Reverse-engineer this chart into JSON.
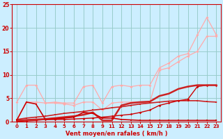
{
  "background_color": "#cceeff",
  "grid_color": "#99cccc",
  "xlabel": "Vent moyen/en rafales ( km/h )",
  "xlim": [
    -0.5,
    21.5
  ],
  "ylim": [
    0,
    25
  ],
  "xtick_positions": [
    0,
    1,
    2,
    3,
    4,
    5,
    6,
    7,
    8,
    9,
    10,
    11,
    12,
    13,
    14,
    15,
    16,
    17,
    18,
    19,
    20,
    21
  ],
  "xtick_labels": [
    "0",
    "1",
    "2",
    "3",
    "4",
    "5",
    "6",
    "7",
    "8",
    "9",
    "11",
    "12",
    "13",
    "14",
    "15",
    "17",
    "18",
    "19",
    "20",
    "21",
    "22",
    "23"
  ],
  "ytick_values": [
    0,
    5,
    10,
    15,
    20,
    25
  ],
  "lines": [
    {
      "x": [
        0,
        1,
        2,
        3,
        4,
        5,
        6,
        7,
        8,
        9,
        10,
        11,
        12,
        13,
        14,
        15,
        16,
        17,
        18,
        19,
        20,
        21
      ],
      "y": [
        4.2,
        7.8,
        7.8,
        4.0,
        4.2,
        4.0,
        4.0,
        7.5,
        7.8,
        4.0,
        7.5,
        7.8,
        7.5,
        7.8,
        7.8,
        11.5,
        12.5,
        14.0,
        14.5,
        18.5,
        22.2,
        18.5
      ],
      "color": "#ffaaaa",
      "linewidth": 0.9,
      "marker": "D",
      "markersize": 2.0,
      "alpha": 1.0,
      "zorder": 2
    },
    {
      "x": [
        0,
        1,
        2,
        3,
        4,
        5,
        6,
        7,
        8,
        9,
        10,
        11,
        12,
        13,
        14,
        15,
        16,
        17,
        18,
        19,
        20,
        21
      ],
      "y": [
        0.5,
        4.2,
        4.2,
        4.0,
        4.0,
        3.8,
        3.5,
        4.2,
        4.2,
        2.5,
        4.0,
        4.2,
        4.2,
        4.2,
        4.2,
        11.0,
        11.5,
        12.8,
        14.0,
        15.0,
        18.2,
        18.2
      ],
      "color": "#ffaaaa",
      "linewidth": 0.9,
      "marker": "D",
      "markersize": 2.0,
      "alpha": 1.0,
      "zorder": 2
    },
    {
      "x": [
        0,
        1,
        2,
        3,
        4,
        5,
        6,
        7,
        8,
        9,
        10,
        11,
        12,
        13,
        14,
        15,
        16,
        17,
        18,
        19,
        20,
        21
      ],
      "y": [
        0.3,
        0.4,
        0.5,
        0.6,
        0.8,
        1.0,
        1.2,
        1.5,
        2.0,
        0.3,
        0.3,
        3.5,
        4.0,
        4.2,
        4.3,
        5.5,
        6.0,
        7.0,
        7.5,
        7.8,
        7.8,
        7.8
      ],
      "color": "#cc2222",
      "linewidth": 1.8,
      "marker": "s",
      "markersize": 2.0,
      "alpha": 1.0,
      "zorder": 4
    },
    {
      "x": [
        0,
        1,
        2,
        3,
        4,
        5,
        6,
        7,
        8,
        9,
        10,
        11,
        12,
        13,
        14,
        15,
        16,
        17,
        18,
        19,
        20,
        21
      ],
      "y": [
        0.5,
        0.8,
        1.0,
        1.2,
        1.5,
        1.8,
        2.0,
        2.2,
        2.5,
        2.7,
        3.0,
        3.2,
        3.5,
        3.8,
        4.0,
        4.2,
        4.4,
        4.5,
        4.5,
        4.5,
        4.3,
        4.2
      ],
      "color": "#cc2222",
      "linewidth": 1.2,
      "marker": "s",
      "markersize": 2.0,
      "alpha": 1.0,
      "zorder": 3
    },
    {
      "x": [
        0,
        1,
        2,
        3,
        4,
        5,
        6,
        7,
        8,
        9,
        10,
        11,
        12,
        13,
        14,
        15,
        16,
        17,
        18,
        19,
        20,
        21
      ],
      "y": [
        0.4,
        4.2,
        3.8,
        0.5,
        0.6,
        0.8,
        1.0,
        2.0,
        1.8,
        0.8,
        0.8,
        0.5,
        0.4,
        0.3,
        0.3,
        0.3,
        0.3,
        0.3,
        0.3,
        0.3,
        0.3,
        0.3
      ],
      "color": "#cc0000",
      "linewidth": 1.2,
      "marker": "s",
      "markersize": 2.0,
      "alpha": 1.0,
      "zorder": 5
    },
    {
      "x": [
        0,
        1,
        2,
        3,
        4,
        5,
        6,
        7,
        8,
        9,
        10,
        11,
        12,
        13,
        14,
        15,
        16,
        17,
        18,
        19,
        20,
        21
      ],
      "y": [
        0.1,
        0.2,
        0.3,
        0.5,
        0.5,
        0.5,
        0.6,
        0.7,
        0.8,
        1.0,
        1.2,
        1.4,
        1.6,
        2.0,
        2.5,
        3.5,
        4.0,
        4.5,
        4.8,
        7.5,
        7.8,
        7.8
      ],
      "color": "#cc0000",
      "linewidth": 1.0,
      "marker": "D",
      "markersize": 1.8,
      "alpha": 1.0,
      "zorder": 3
    }
  ]
}
